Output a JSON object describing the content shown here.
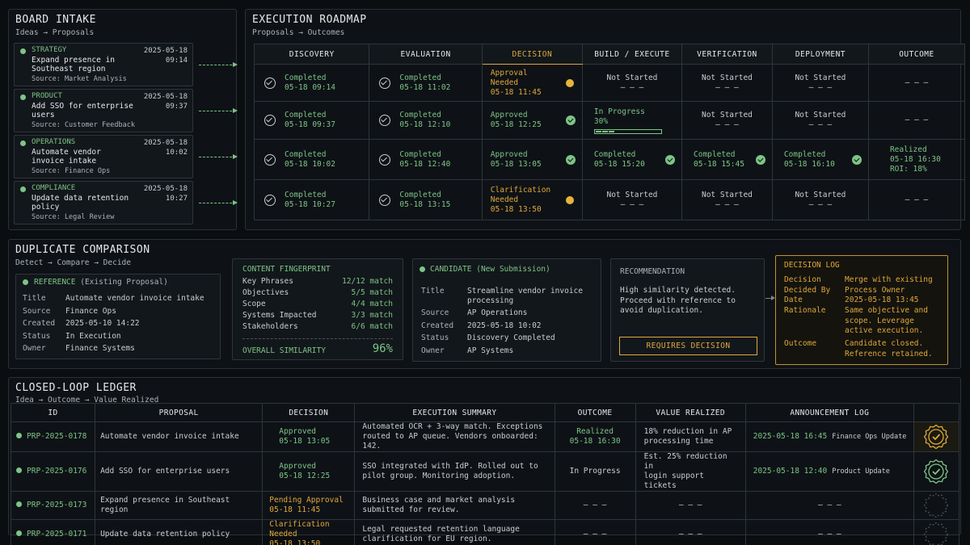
{
  "intake": {
    "title": "BOARD INTAKE",
    "subtitle": "Ideas → Proposals",
    "cards": [
      {
        "tag": "STRATEGY",
        "date": "2025-05-18",
        "time": "09:14",
        "title": "Expand presence in Southeast region",
        "source": "Source: Market Analysis"
      },
      {
        "tag": "PRODUCT",
        "date": "2025-05-18",
        "time": "09:37",
        "title": "Add SSO for enterprise users",
        "source": "Source: Customer Feedback"
      },
      {
        "tag": "OPERATIONS",
        "date": "2025-05-18",
        "time": "10:02",
        "title": "Automate vendor invoice intake",
        "source": "Source: Finance Ops"
      },
      {
        "tag": "COMPLIANCE",
        "date": "2025-05-18",
        "time": "10:27",
        "title": "Update data retention policy",
        "source": "Source: Legal Review"
      }
    ]
  },
  "roadmap": {
    "title": "EXECUTION ROADMAP",
    "subtitle": "Proposals → Outcomes",
    "columns": [
      "DISCOVERY",
      "EVALUATION",
      "DECISION",
      "BUILD / EXECUTE",
      "VERIFICATION",
      "DEPLOYMENT",
      "OUTCOME"
    ],
    "not_started": "Not Started",
    "dash": "— — —",
    "rows": [
      {
        "discovery": [
          "Completed",
          "05-18 09:14"
        ],
        "evaluation": [
          "Completed",
          "05-18 11:02"
        ],
        "decision": [
          "Approval",
          "Needed",
          "05-18 11:45"
        ]
      },
      {
        "discovery": [
          "Completed",
          "05-18 09:37"
        ],
        "evaluation": [
          "Completed",
          "05-18 12:10"
        ],
        "decision": [
          "Approved",
          "05-18 12:25"
        ],
        "build": [
          "In Progress",
          "30%"
        ],
        "progress": 0.3
      },
      {
        "discovery": [
          "Completed",
          "05-18 10:02"
        ],
        "evaluation": [
          "Completed",
          "05-18 12:40"
        ],
        "decision": [
          "Approved",
          "05-18 13:05"
        ],
        "build": [
          "Completed",
          "05-18 15:20"
        ],
        "verification": [
          "Completed",
          "05-18 15:45"
        ],
        "deployment": [
          "Completed",
          "05-18 16:10"
        ],
        "outcome": [
          "Realized",
          "05-18 16:30",
          "ROI: 18%"
        ]
      },
      {
        "discovery": [
          "Completed",
          "05-18 10:27"
        ],
        "evaluation": [
          "Completed",
          "05-18 13:15"
        ],
        "decision": [
          "Clarification",
          "Needed",
          "05-18 13:50"
        ]
      }
    ]
  },
  "duplicate": {
    "title": "DUPLICATE COMPARISON",
    "subtitle": "Detect → Compare → Decide",
    "reference": {
      "head": "REFERENCE",
      "head_note": "(Existing Proposal)",
      "rows": [
        [
          "Title",
          "Automate vendor invoice intake"
        ],
        [
          "Source",
          "Finance Ops"
        ],
        [
          "Created",
          "2025-05-10 14:22"
        ],
        [
          "Status",
          "In Execution"
        ],
        [
          "Owner",
          "Finance Systems"
        ]
      ]
    },
    "fingerprint": {
      "head": "CONTENT FINGERPRINT",
      "rows": [
        [
          "Key Phrases",
          "12/12 match"
        ],
        [
          "Objectives",
          "5/5 match"
        ],
        [
          "Scope",
          "4/4 match"
        ],
        [
          "Systems Impacted",
          "3/3 match"
        ],
        [
          "Stakeholders",
          "6/6 match"
        ]
      ],
      "overall_label": "OVERALL SIMILARITY",
      "overall_value": "96%"
    },
    "candidate": {
      "head": "CANDIDATE",
      "head_note": "(New Submission)",
      "title_label": "Title",
      "title_value1": "Streamline vendor invoice",
      "title_value2": "processing",
      "rows": [
        [
          "Source",
          "AP Operations"
        ],
        [
          "Created",
          "2025-05-18 10:02"
        ],
        [
          "Status",
          "Discovery Completed"
        ],
        [
          "Owner",
          "AP Systems"
        ]
      ]
    },
    "recommendation": {
      "head": "RECOMMENDATION",
      "lines": [
        "High similarity detected.",
        "Proceed with reference to",
        "avoid duplication."
      ],
      "button": "REQUIRES DECISION"
    },
    "log": {
      "head": "DECISION LOG",
      "decision_label": "Decision",
      "decision_value": [
        "Merge with existing",
        "Process Owner"
      ],
      "by_label": "Decided By",
      "date_label": "Date",
      "date_value": "2025-05-18 13:45",
      "rationale_label": "Rationale",
      "rationale_value": [
        "Same objective and",
        "scope. Leverage",
        "active execution."
      ],
      "outcome_label": "Outcome",
      "outcome_value": [
        "Candidate closed.",
        "Reference retained."
      ]
    }
  },
  "ledger": {
    "title": "CLOSED-LOOP LEDGER",
    "subtitle": "Idea → Outcome → Value Realized",
    "columns": [
      "ID",
      "PROPOSAL",
      "DECISION",
      "EXECUTION SUMMARY",
      "OUTCOME",
      "VALUE REALIZED",
      "ANNOUNCEMENT LOG"
    ],
    "dash": "— — —",
    "rows": [
      {
        "id": "PRP-2025-0178",
        "proposal": "Automate vendor invoice intake",
        "decision": [
          "Approved",
          "05-18 13:05"
        ],
        "decision_state": "approved",
        "summary": [
          "Automated OCR + 3-way match. Exceptions",
          "routed to AP queue. Vendors onboarded: 142."
        ],
        "outcome": [
          "Realized",
          "05-18 16:30"
        ],
        "value": [
          "18% reduction in AP",
          "processing time"
        ],
        "ann_date": "2025-05-18 16:45",
        "ann_text": "Finance Ops Update",
        "badge": "gold"
      },
      {
        "id": "PRP-2025-0176",
        "proposal": "Add SSO for enterprise users",
        "decision": [
          "Approved",
          "05-18 12:25"
        ],
        "decision_state": "approved",
        "summary": [
          "SSO integrated with IdP. Rolled out to",
          "pilot group. Monitoring adoption."
        ],
        "outcome": [
          "In Progress"
        ],
        "value": [
          "Est. 25% reduction in",
          "login support tickets"
        ],
        "ann_date": "2025-05-18 12:40",
        "ann_text": "Product Update",
        "badge": "green"
      },
      {
        "id": "PRP-2025-0173",
        "proposal": "Expand presence in Southeast region",
        "decision": [
          "Pending Approval",
          "05-18 11:45"
        ],
        "decision_state": "pending",
        "summary": [
          "Business case and market analysis",
          "submitted for review."
        ],
        "badge": "empty"
      },
      {
        "id": "PRP-2025-0171",
        "proposal": "Update data retention policy",
        "decision": [
          "Clarification Needed",
          "05-18 13:50"
        ],
        "decision_state": "pending",
        "summary": [
          "Legal requested retention language",
          "clarification for EU region."
        ],
        "badge": "empty"
      }
    ]
  }
}
